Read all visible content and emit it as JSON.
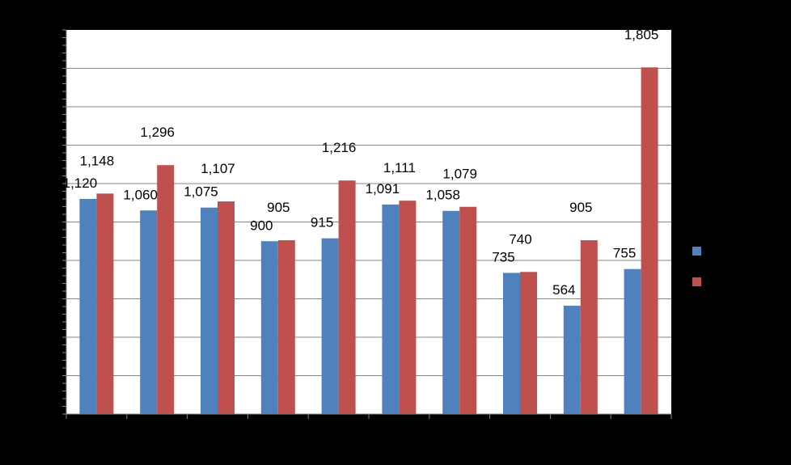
{
  "chart_data": {
    "type": "bar",
    "title": "",
    "xlabel": "",
    "ylabel": "",
    "categories": [
      "",
      "",
      "",
      "",
      "",
      "",
      "",
      "",
      "",
      ""
    ],
    "ylim": [
      0,
      2000
    ],
    "grid": true,
    "legend_position": "right",
    "series": [
      {
        "color": "#4F81BD",
        "values": [
          1120,
          1060,
          1075,
          900,
          915,
          1091,
          1058,
          735,
          564,
          755
        ],
        "labels": [
          "1,120",
          "1,060",
          "1,075",
          "900",
          "915",
          "1,091",
          "1,058",
          "735",
          "564",
          "755"
        ]
      },
      {
        "color": "#C0504D",
        "values": [
          1148,
          1296,
          1107,
          905,
          1216,
          1111,
          1079,
          740,
          905,
          1805
        ],
        "labels": [
          "1,148",
          "1,296",
          "1,107",
          "905",
          "1,216",
          "1,111",
          "1,079",
          "740",
          "905",
          "1,805"
        ]
      }
    ]
  }
}
